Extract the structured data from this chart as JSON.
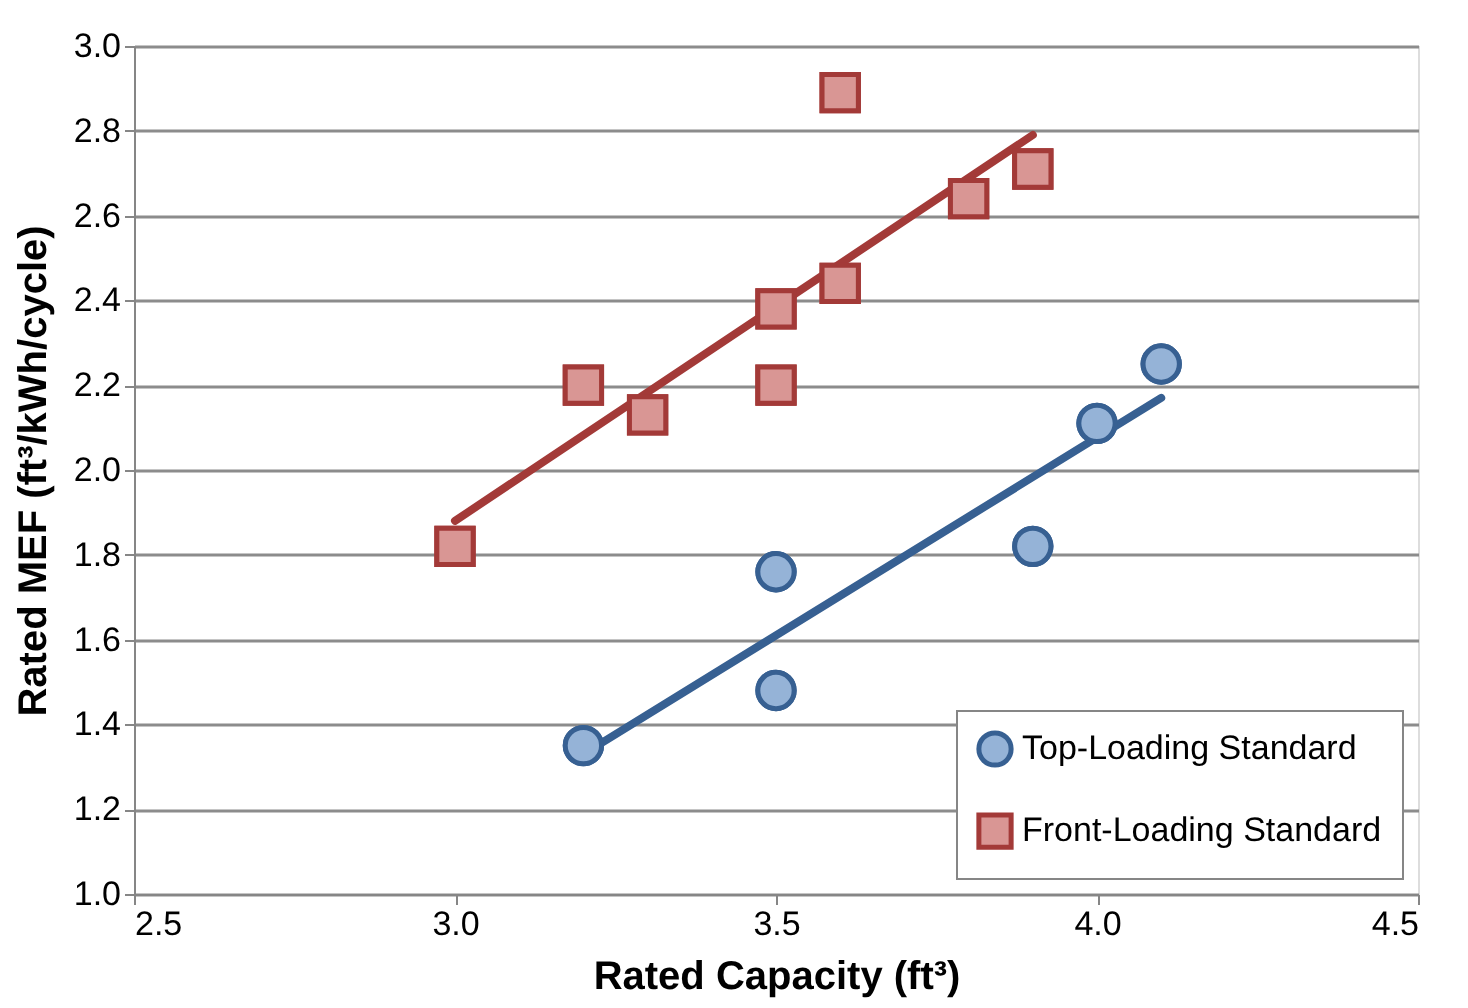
{
  "chart_data": {
    "type": "scatter",
    "xlabel": "Rated Capacity (ft³)",
    "ylabel": "Rated MEF (ft³/kWh/cycle)",
    "series": [
      {
        "name": "Top-Loading Standard",
        "marker": "circle",
        "color": "#95b3d7",
        "x": [
          3.2,
          3.5,
          3.5,
          3.9,
          4.0,
          4.1
        ],
        "values": [
          1.35,
          1.76,
          1.48,
          1.82,
          2.11,
          2.25
        ]
      },
      {
        "type": "line",
        "color": "#376092",
        "x": [
          3.2,
          4.1
        ],
        "values": [
          1.33,
          2.17
        ]
      },
      {
        "name": "Front-Loading Standard",
        "marker": "square",
        "color": "#d99694",
        "x": [
          3.0,
          3.2,
          3.3,
          3.5,
          3.5,
          3.6,
          3.6,
          3.8,
          3.9
        ],
        "values": [
          1.82,
          2.2,
          2.13,
          2.38,
          2.2,
          2.44,
          2.89,
          2.64,
          2.71
        ]
      },
      {
        "type": "line",
        "color": "#a33a38",
        "x": [
          3.0,
          3.9
        ],
        "values": [
          1.88,
          2.79
        ]
      }
    ],
    "xlim": [
      2.5,
      4.5
    ],
    "xticks": [
      {
        "value": 2.5,
        "label": "2.5"
      },
      {
        "value": 3.0,
        "label": "3.0"
      },
      {
        "value": 3.5,
        "label": "3.5"
      },
      {
        "value": 4.0,
        "label": "4.0"
      },
      {
        "value": 4.5,
        "label": "4.5"
      }
    ],
    "ylim": [
      1.0,
      3.0
    ],
    "yticks": [
      {
        "value": 1.0,
        "label": "1.0"
      },
      {
        "value": 1.2,
        "label": "1.2"
      },
      {
        "value": 1.4,
        "label": "1.4"
      },
      {
        "value": 1.6,
        "label": "1.6"
      },
      {
        "value": 1.8,
        "label": "1.8"
      },
      {
        "value": 2.0,
        "label": "2.0"
      },
      {
        "value": 2.2,
        "label": "2.2"
      },
      {
        "value": 2.4,
        "label": "2.4"
      },
      {
        "value": 2.6,
        "label": "2.6"
      },
      {
        "value": 2.8,
        "label": "2.8"
      },
      {
        "value": 3.0,
        "label": "3.0"
      }
    ],
    "grid": "y",
    "legend": "bottom right"
  }
}
